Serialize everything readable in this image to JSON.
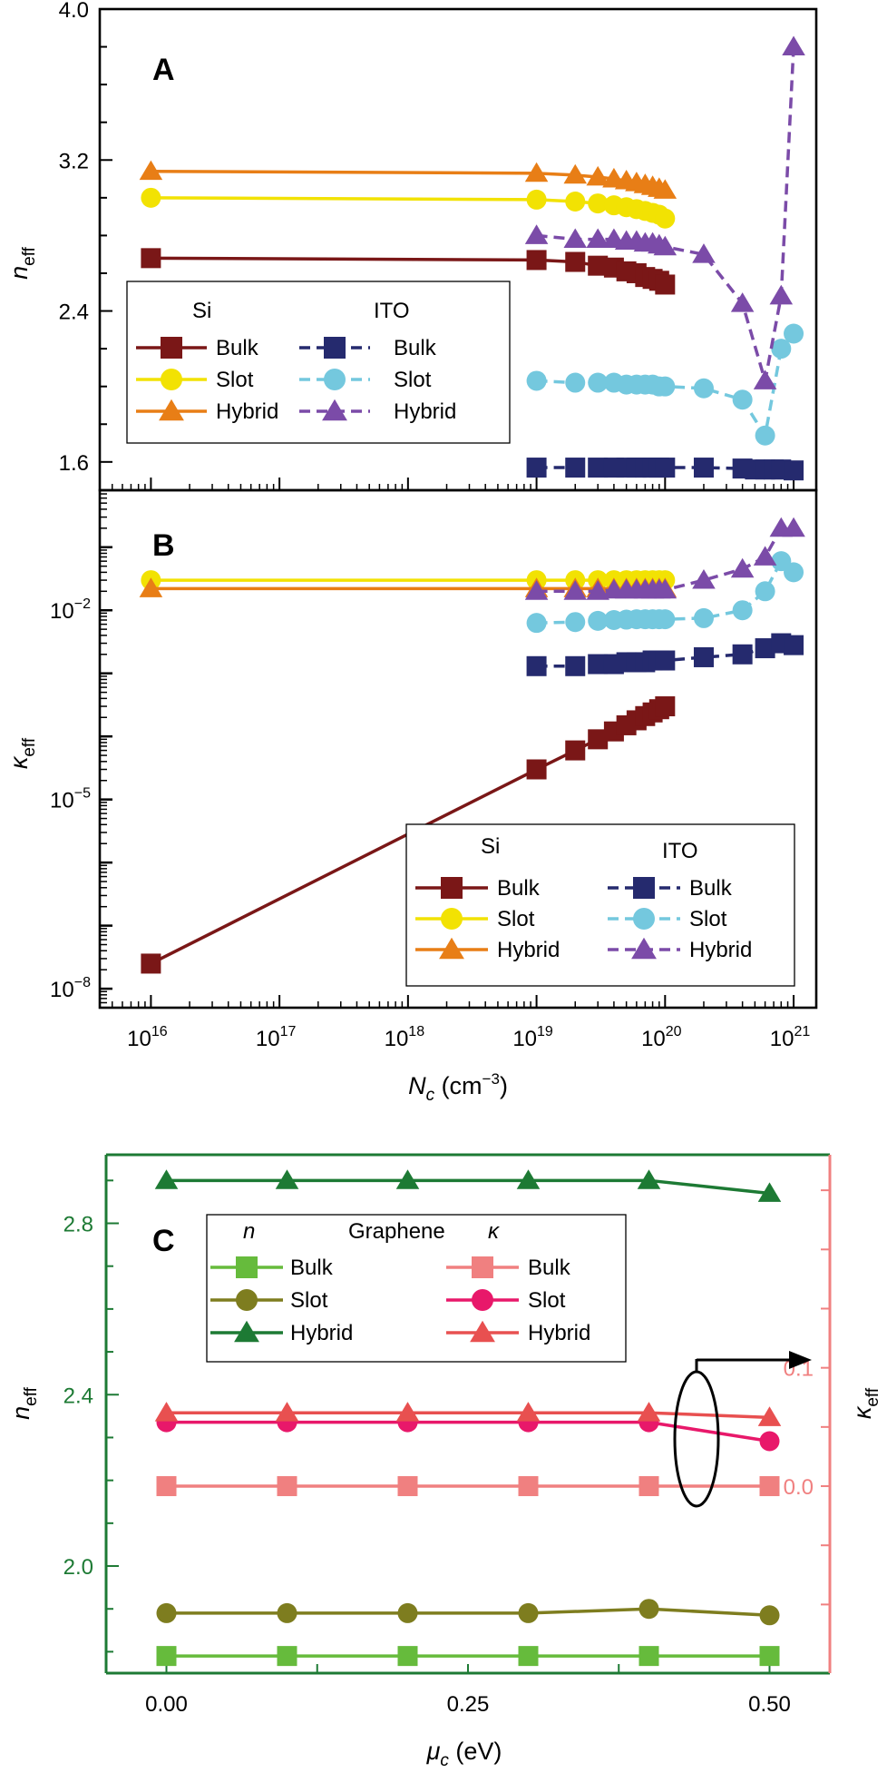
{
  "chart_data": [
    {
      "panel": "A",
      "type": "line",
      "title": "",
      "panel_label": "A",
      "xscale": "log",
      "xlim": [
        4000000000000000.0,
        1.5e+21
      ],
      "ylim": [
        1.45,
        4.0
      ],
      "xlabel": "",
      "ylabel_main": "n",
      "ylabel_sub": "eff",
      "yticks": [
        1.6,
        2.4,
        3.2,
        4.0
      ],
      "ytick_labels": [
        "1.6",
        "2.4",
        "3.2",
        "4.0"
      ],
      "legend": {
        "placement": "lower-left",
        "headers": [
          "Si",
          "ITO"
        ],
        "entries": [
          {
            "group": "Si",
            "label": "Bulk",
            "series": "Si Bulk"
          },
          {
            "group": "Si",
            "label": "Slot",
            "series": "Si Slot"
          },
          {
            "group": "Si",
            "label": "Hybrid",
            "series": "Si Hybrid"
          },
          {
            "group": "ITO",
            "label": "Bulk",
            "series": "ITO Bulk"
          },
          {
            "group": "ITO",
            "label": "Slot",
            "series": "ITO Slot"
          },
          {
            "group": "ITO",
            "label": "Hybrid",
            "series": "ITO Hybrid"
          }
        ]
      },
      "series": [
        {
          "name": "Si Bulk",
          "color": "#7a1717",
          "marker": "square",
          "dash": "solid",
          "x": [
            1e+16,
            1e+19,
            2e+19,
            3e+19,
            4e+19,
            5e+19,
            6e+19,
            7e+19,
            8e+19,
            9e+19,
            1e+20
          ],
          "y": [
            2.68,
            2.67,
            2.66,
            2.64,
            2.63,
            2.61,
            2.6,
            2.58,
            2.57,
            2.56,
            2.54
          ]
        },
        {
          "name": "Si Slot",
          "color": "#f2e203",
          "marker": "circle",
          "dash": "solid",
          "x": [
            1e+16,
            1e+19,
            2e+19,
            3e+19,
            4e+19,
            5e+19,
            6e+19,
            7e+19,
            8e+19,
            9e+19,
            1e+20
          ],
          "y": [
            3.0,
            2.99,
            2.98,
            2.97,
            2.96,
            2.95,
            2.94,
            2.93,
            2.92,
            2.91,
            2.89
          ]
        },
        {
          "name": "Si Hybrid",
          "color": "#e87e16",
          "marker": "triangle",
          "dash": "solid",
          "x": [
            1e+16,
            1e+19,
            2e+19,
            3e+19,
            4e+19,
            5e+19,
            6e+19,
            7e+19,
            8e+19,
            9e+19,
            1e+20
          ],
          "y": [
            3.14,
            3.13,
            3.12,
            3.11,
            3.1,
            3.09,
            3.08,
            3.07,
            3.06,
            3.05,
            3.04
          ]
        },
        {
          "name": "ITO Bulk",
          "color": "#252a6e",
          "marker": "square",
          "dash": "dashed",
          "x": [
            1e+19,
            2e+19,
            3e+19,
            4e+19,
            5e+19,
            6e+19,
            7e+19,
            8e+19,
            9e+19,
            1e+20,
            2e+20,
            4e+20,
            5e+20,
            6e+20,
            7e+20,
            8e+20,
            1e+21
          ],
          "y": [
            1.57,
            1.57,
            1.57,
            1.57,
            1.57,
            1.57,
            1.57,
            1.57,
            1.57,
            1.57,
            1.57,
            1.565,
            1.56,
            1.56,
            1.56,
            1.56,
            1.555
          ]
        },
        {
          "name": "ITO Slot",
          "color": "#74c8de",
          "marker": "circle",
          "dash": "dashed",
          "x": [
            1e+19,
            2e+19,
            3e+19,
            4e+19,
            5e+19,
            6e+19,
            7e+19,
            8e+19,
            9e+19,
            1e+20,
            2e+20,
            4e+20,
            6e+20,
            8e+20,
            1e+21
          ],
          "y": [
            2.03,
            2.02,
            2.02,
            2.02,
            2.01,
            2.01,
            2.01,
            2.01,
            2.0,
            2.0,
            1.99,
            1.93,
            1.74,
            2.2,
            2.28
          ]
        },
        {
          "name": "ITO Hybrid",
          "color": "#7b4ba8",
          "marker": "triangle",
          "dash": "dashed",
          "x": [
            1e+19,
            2e+19,
            3e+19,
            4e+19,
            5e+19,
            6e+19,
            7e+19,
            8e+19,
            9e+19,
            1e+20,
            2e+20,
            4e+20,
            6e+20,
            8e+20,
            1e+21
          ],
          "y": [
            2.8,
            2.78,
            2.78,
            2.78,
            2.77,
            2.77,
            2.76,
            2.76,
            2.75,
            2.74,
            2.7,
            2.44,
            2.03,
            2.48,
            3.8
          ]
        }
      ]
    },
    {
      "panel": "B",
      "type": "line",
      "title": "",
      "panel_label": "B",
      "xscale": "log",
      "yscale": "log",
      "xlim": [
        4000000000000000.0,
        1.5e+21
      ],
      "ylim": [
        5e-09,
        0.8
      ],
      "xlabel_main": "N",
      "xlabel_sub": "c",
      "xlabel_unit": " (cm",
      "xlabel_exp": "−3",
      "xlabel_close": ")",
      "xticks": [
        1e+16,
        1e+17,
        1e+18,
        1e+19,
        1e+20,
        1e+21
      ],
      "xtick_base": "10",
      "xtick_exponents": [
        "16",
        "17",
        "18",
        "19",
        "20",
        "21"
      ],
      "ylabel_main": "κ",
      "ylabel_sub": "eff",
      "yticks": [
        1e-08,
        1e-05,
        0.01
      ],
      "ytick_base": "10",
      "ytick_exponents": [
        "−8",
        "−5",
        "−2"
      ],
      "legend": {
        "placement": "lower-right",
        "headers": [
          "Si",
          "ITO"
        ],
        "entries": [
          {
            "group": "Si",
            "label": "Bulk",
            "series": "Si Bulk"
          },
          {
            "group": "Si",
            "label": "Slot",
            "series": "Si Slot"
          },
          {
            "group": "Si",
            "label": "Hybrid",
            "series": "Si Hybrid"
          },
          {
            "group": "ITO",
            "label": "Bulk",
            "series": "ITO Bulk"
          },
          {
            "group": "ITO",
            "label": "Slot",
            "series": "ITO Slot"
          },
          {
            "group": "ITO",
            "label": "Hybrid",
            "series": "ITO Hybrid"
          }
        ]
      },
      "series": [
        {
          "name": "Si Bulk",
          "color": "#7a1717",
          "marker": "square",
          "dash": "solid",
          "x": [
            1e+16,
            1e+19,
            2e+19,
            3e+19,
            4e+19,
            5e+19,
            6e+19,
            7e+19,
            8e+19,
            9e+19,
            1e+20
          ],
          "y": [
            2.5e-08,
            3e-05,
            6e-05,
            9e-05,
            0.00012,
            0.00015,
            0.00018,
            0.00021,
            0.00024,
            0.00027,
            0.0003
          ]
        },
        {
          "name": "Si Slot",
          "color": "#f2e203",
          "marker": "circle",
          "dash": "solid",
          "x": [
            1e+16,
            1e+19,
            2e+19,
            3e+19,
            4e+19,
            5e+19,
            6e+19,
            7e+19,
            8e+19,
            9e+19,
            1e+20
          ],
          "y": [
            0.03,
            0.03,
            0.03,
            0.03,
            0.03,
            0.03,
            0.03,
            0.03,
            0.03,
            0.03,
            0.03
          ]
        },
        {
          "name": "Si Hybrid",
          "color": "#e87e16",
          "marker": "triangle",
          "dash": "solid",
          "x": [
            1e+16,
            1e+19,
            2e+19,
            3e+19,
            4e+19,
            5e+19,
            6e+19,
            7e+19,
            8e+19,
            9e+19,
            1e+20
          ],
          "y": [
            0.022,
            0.022,
            0.022,
            0.022,
            0.022,
            0.022,
            0.022,
            0.022,
            0.022,
            0.022,
            0.022
          ]
        },
        {
          "name": "ITO Bulk",
          "color": "#252a6e",
          "marker": "square",
          "dash": "dashed",
          "x": [
            1e+19,
            2e+19,
            3e+19,
            4e+19,
            5e+19,
            6e+19,
            7e+19,
            8e+19,
            9e+19,
            1e+20,
            2e+20,
            4e+20,
            6e+20,
            8e+20,
            1e+21
          ],
          "y": [
            0.0013,
            0.0013,
            0.0014,
            0.0014,
            0.0015,
            0.0015,
            0.0015,
            0.0016,
            0.0016,
            0.0016,
            0.0018,
            0.002,
            0.0025,
            0.003,
            0.0028
          ]
        },
        {
          "name": "ITO Slot",
          "color": "#74c8de",
          "marker": "circle",
          "dash": "dashed",
          "x": [
            1e+19,
            2e+19,
            3e+19,
            4e+19,
            5e+19,
            6e+19,
            7e+19,
            8e+19,
            9e+19,
            1e+20,
            2e+20,
            4e+20,
            6e+20,
            8e+20,
            1e+21
          ],
          "y": [
            0.0063,
            0.0065,
            0.0068,
            0.007,
            0.0071,
            0.0072,
            0.0072,
            0.0072,
            0.0072,
            0.0072,
            0.0075,
            0.01,
            0.02,
            0.06,
            0.04
          ]
        },
        {
          "name": "ITO Hybrid",
          "color": "#7b4ba8",
          "marker": "triangle",
          "dash": "dashed",
          "x": [
            1e+19,
            2e+19,
            3e+19,
            4e+19,
            5e+19,
            6e+19,
            7e+19,
            8e+19,
            9e+19,
            1e+20,
            2e+20,
            4e+20,
            6e+20,
            8e+20,
            1e+21
          ],
          "y": [
            0.02,
            0.02,
            0.02,
            0.021,
            0.021,
            0.021,
            0.021,
            0.021,
            0.021,
            0.021,
            0.03,
            0.045,
            0.07,
            0.2,
            0.2
          ]
        }
      ]
    },
    {
      "panel": "C",
      "type": "line",
      "title": "",
      "panel_label": "C",
      "xlim": [
        -0.05,
        0.55
      ],
      "xticks": [
        0.0,
        0.25,
        0.5
      ],
      "xtick_labels": [
        "0.00",
        "0.25",
        "0.50"
      ],
      "xlabel_main": "μ",
      "xlabel_sub": "c",
      "xlabel_unit": " (eV)",
      "ylim_left": [
        1.75,
        2.96
      ],
      "yticks_left": [
        2.0,
        2.4,
        2.8
      ],
      "ytick_labels_left": [
        "2.0",
        "2.4",
        "2.8"
      ],
      "ylabel_left_main": "n",
      "ylabel_left_sub": "eff",
      "ylim_right": [
        -0.158,
        0.28
      ],
      "yticks_right": [
        0.0,
        0.1
      ],
      "ytick_labels_right": [
        "0.0",
        "0.1"
      ],
      "ylabel_right_main": "κ",
      "ylabel_right_sub": "eff",
      "left_axis_color": "#1d7a34",
      "right_axis_color": "#f08080",
      "legend": {
        "placement": "top-left",
        "headers": [
          "n",
          "Graphene",
          "κ"
        ],
        "entries": [
          {
            "group": "n",
            "label": "Bulk",
            "series": "n Bulk"
          },
          {
            "group": "n",
            "label": "Slot",
            "series": "n Slot"
          },
          {
            "group": "n",
            "label": "Hybrid",
            "series": "n Hybrid"
          },
          {
            "group": "κ",
            "label": "Bulk",
            "series": "κ Bulk"
          },
          {
            "group": "κ",
            "label": "Slot",
            "series": "κ Slot"
          },
          {
            "group": "κ",
            "label": "Hybrid",
            "series": "κ Hybrid"
          }
        ]
      },
      "series": [
        {
          "name": "n Bulk",
          "axis": "left",
          "color": "#66bb3c",
          "marker": "square",
          "x": [
            0.0,
            0.1,
            0.2,
            0.3,
            0.4,
            0.5
          ],
          "y": [
            1.79,
            1.79,
            1.79,
            1.79,
            1.79,
            1.79
          ]
        },
        {
          "name": "n Slot",
          "axis": "left",
          "color": "#7e7d1f",
          "marker": "circle",
          "x": [
            0.0,
            0.1,
            0.2,
            0.3,
            0.4,
            0.5
          ],
          "y": [
            1.89,
            1.89,
            1.89,
            1.89,
            1.9,
            1.885
          ]
        },
        {
          "name": "n Hybrid",
          "axis": "left",
          "color": "#1d7a34",
          "marker": "triangle",
          "x": [
            0.0,
            0.1,
            0.2,
            0.3,
            0.4,
            0.5
          ],
          "y": [
            2.9,
            2.9,
            2.9,
            2.9,
            2.9,
            2.87
          ]
        },
        {
          "name": "κ Bulk",
          "axis": "right",
          "color": "#f08080",
          "marker": "square",
          "x": [
            0.0,
            0.1,
            0.2,
            0.3,
            0.4,
            0.5
          ],
          "y": [
            0.0,
            0.0,
            0.0,
            0.0,
            0.0,
            0.0
          ]
        },
        {
          "name": "κ Slot",
          "axis": "right",
          "color": "#e8186a",
          "marker": "circle",
          "x": [
            0.0,
            0.1,
            0.2,
            0.3,
            0.4,
            0.5
          ],
          "y": [
            0.054,
            0.054,
            0.054,
            0.054,
            0.054,
            0.038
          ]
        },
        {
          "name": "κ Hybrid",
          "axis": "right",
          "color": "#e85050",
          "marker": "triangle",
          "x": [
            0.0,
            0.1,
            0.2,
            0.3,
            0.4,
            0.5
          ],
          "y": [
            0.062,
            0.062,
            0.062,
            0.062,
            0.062,
            0.058
          ]
        }
      ]
    }
  ]
}
